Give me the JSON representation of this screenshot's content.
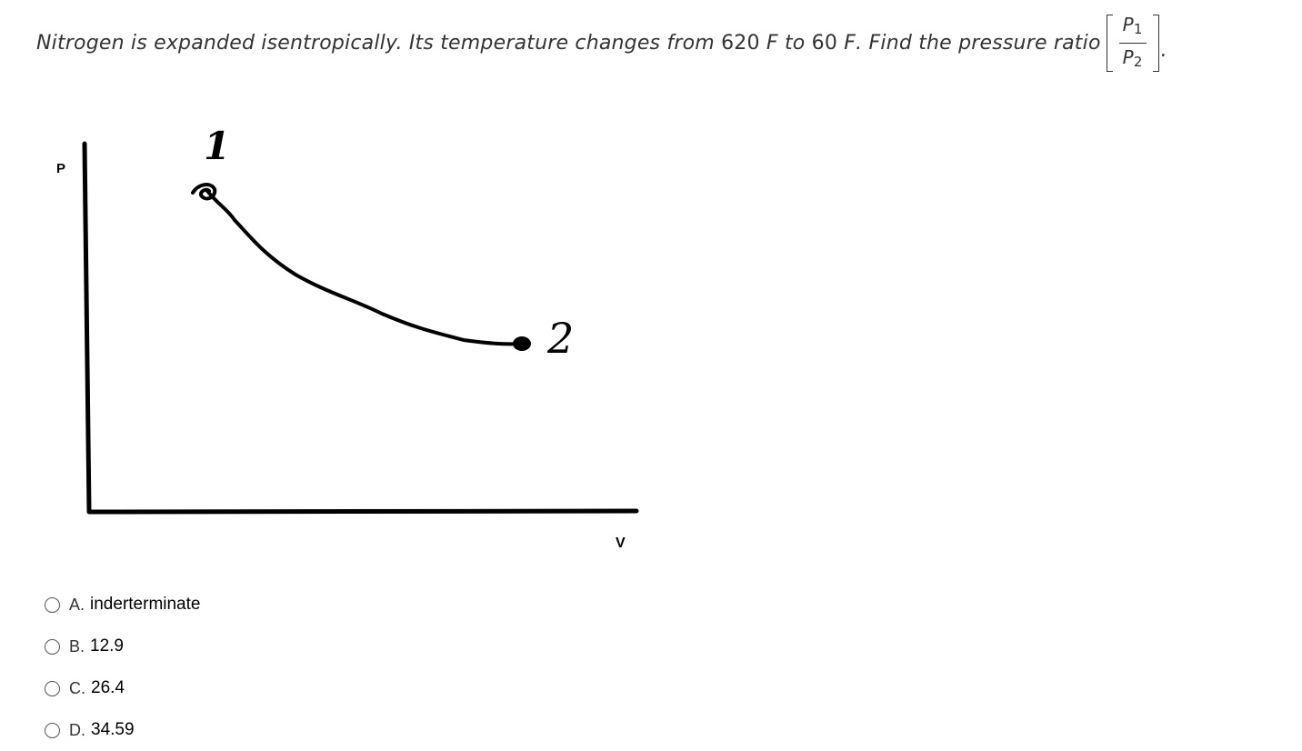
{
  "question": {
    "text_main": "Nitrogen is expanded isentropically. Its temperature changes from",
    "temp1": "620",
    "unit1": "F",
    "text_to": "to",
    "temp2": "60",
    "unit2": "F",
    "text_end": ". Find the pressure ratio",
    "fraction": {
      "num_symbol": "P",
      "num_sub": "1",
      "den_symbol": "P",
      "den_sub": "2"
    },
    "trailing": "."
  },
  "diagram": {
    "y_axis_label": "P",
    "x_axis_label": "V",
    "point1_label": "1",
    "point2_label": "2"
  },
  "options": [
    {
      "letter": "A.",
      "text": "inderterminate"
    },
    {
      "letter": "B.",
      "text": "12.9"
    },
    {
      "letter": "C.",
      "text": "26.4"
    },
    {
      "letter": "D.",
      "text": "34.59"
    }
  ]
}
